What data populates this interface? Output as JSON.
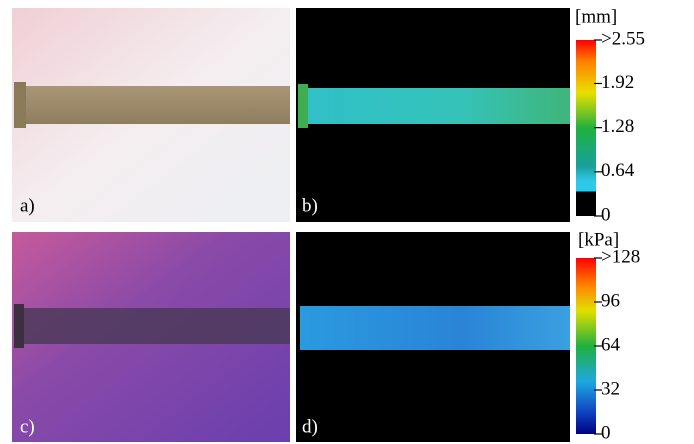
{
  "panels": [
    {
      "label": "a)"
    },
    {
      "label": "b)"
    },
    {
      "label": "c)"
    },
    {
      "label": "d)"
    }
  ],
  "colorbars": [
    {
      "unit": "[mm]",
      "ticks": [
        {
          "value": 2.55,
          "label": ">2.55"
        },
        1.92,
        1.28,
        0.64,
        0
      ]
    },
    {
      "unit": "[kPa]",
      "ticks": [
        {
          "value": 128,
          "label": ">128"
        },
        96,
        64,
        32,
        0
      ]
    }
  ]
}
